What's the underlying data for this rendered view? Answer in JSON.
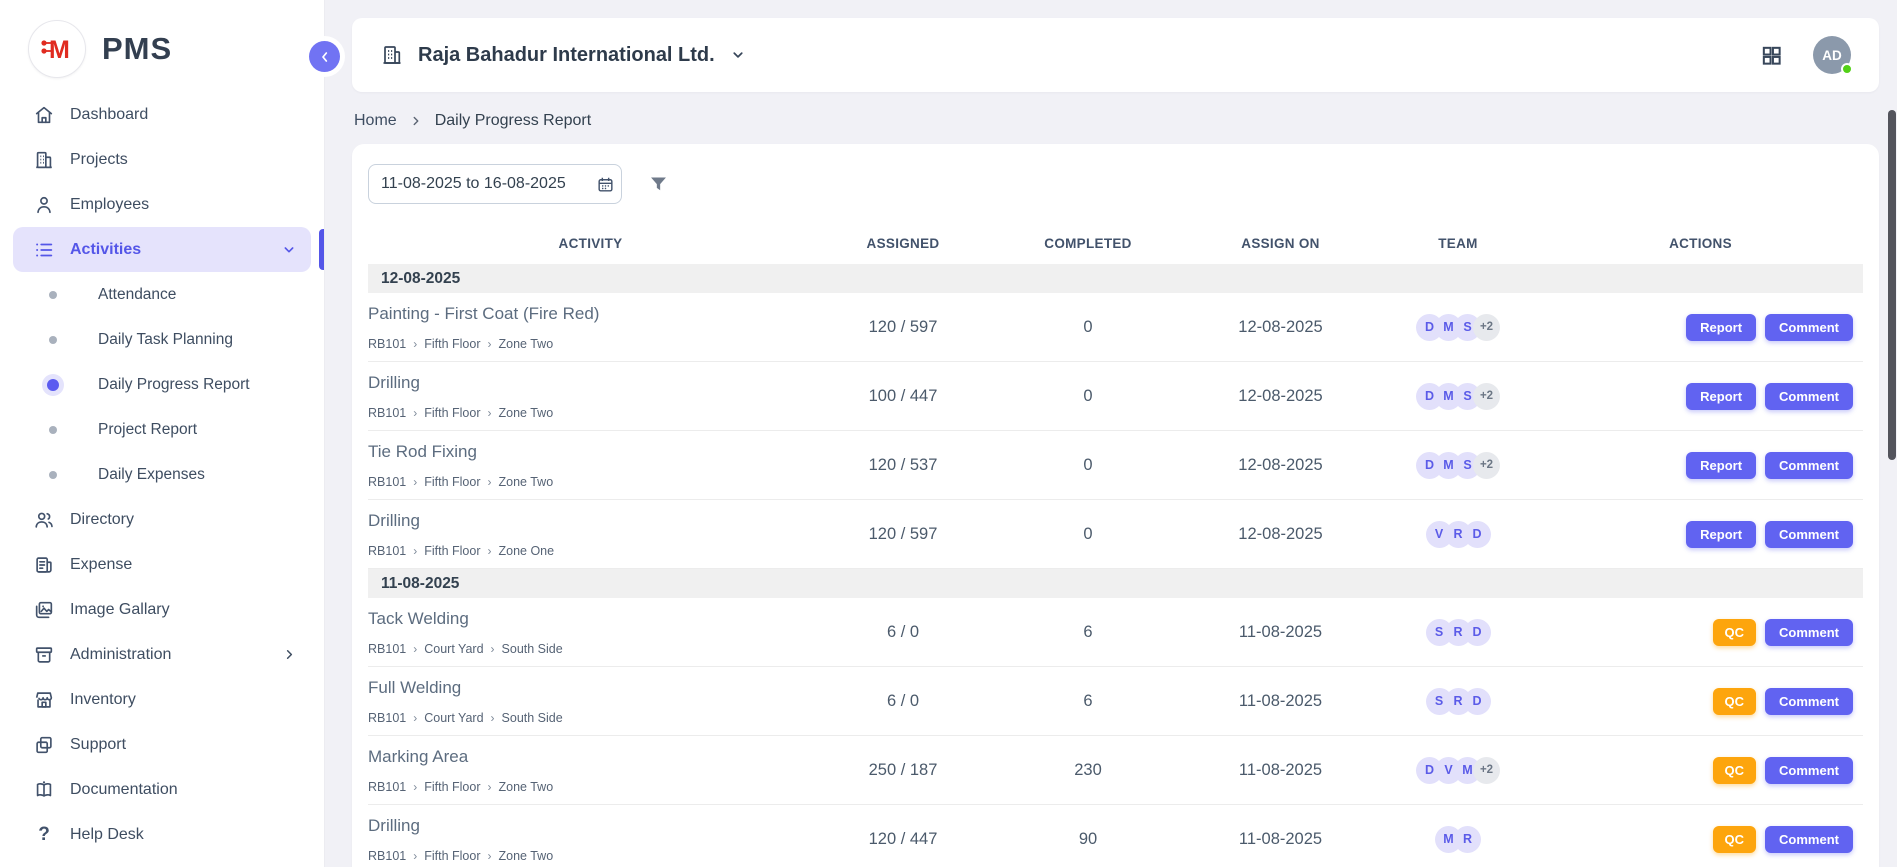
{
  "brand": {
    "logo_letter": "M",
    "app_name": "PMS"
  },
  "colors": {
    "accent": "#6163F1",
    "accent_light": "#E5E3FC",
    "amber": "#FDA50D",
    "brand_red": "#E02B20",
    "online_green": "#52D017",
    "avatar_gray": "#8B99AB"
  },
  "sidebar": {
    "items": [
      {
        "id": "dashboard",
        "label": "Dashboard",
        "icon": "home-icon",
        "type": "top"
      },
      {
        "id": "projects",
        "label": "Projects",
        "icon": "projects-icon",
        "type": "top"
      },
      {
        "id": "employees",
        "label": "Employees",
        "icon": "employees-icon",
        "type": "top"
      },
      {
        "id": "activities",
        "label": "Activities",
        "icon": "activities-icon",
        "type": "top",
        "active": true,
        "chevron": "down"
      },
      {
        "id": "attendance",
        "label": "Attendance",
        "type": "sub"
      },
      {
        "id": "daily-task-planning",
        "label": "Daily Task Planning",
        "type": "sub"
      },
      {
        "id": "daily-progress-report",
        "label": "Daily Progress Report",
        "type": "sub",
        "active": true
      },
      {
        "id": "project-report",
        "label": "Project Report",
        "type": "sub"
      },
      {
        "id": "daily-expenses",
        "label": "Daily Expenses",
        "type": "sub"
      },
      {
        "id": "directory",
        "label": "Directory",
        "icon": "directory-icon",
        "type": "top"
      },
      {
        "id": "expense",
        "label": "Expense",
        "icon": "expense-icon",
        "type": "top"
      },
      {
        "id": "image-gallary",
        "label": "Image Gallary",
        "icon": "image-gallery-icon",
        "type": "top"
      },
      {
        "id": "administration",
        "label": "Administration",
        "icon": "administration-icon",
        "type": "top",
        "chevron": "right"
      },
      {
        "id": "inventory",
        "label": "Inventory",
        "icon": "inventory-icon",
        "type": "top"
      },
      {
        "id": "support",
        "label": "Support",
        "icon": "support-icon",
        "type": "top"
      },
      {
        "id": "documentation",
        "label": "Documentation",
        "icon": "documentation-icon",
        "type": "top"
      },
      {
        "id": "help-desk",
        "label": "Help Desk",
        "icon": "help-icon",
        "type": "top"
      }
    ]
  },
  "header": {
    "company": "Raja Bahadur International Ltd.",
    "avatar_initials": "AD"
  },
  "breadcrumb": {
    "items": [
      "Home",
      "Daily Progress Report"
    ]
  },
  "filters": {
    "date_range": "11-08-2025 to 16-08-2025"
  },
  "table": {
    "columns": [
      "Activity",
      "Assigned",
      "Completed",
      "Assign On",
      "Team",
      "Actions"
    ],
    "groups": [
      {
        "date": "12-08-2025",
        "rows": [
          {
            "activity": "Painting - First Coat (Fire Red)",
            "path": [
              "RB101",
              "Fifth Floor",
              "Zone Two"
            ],
            "assigned": "120 / 597",
            "completed": "0",
            "assign_on": "12-08-2025",
            "team": [
              "D",
              "M",
              "S"
            ],
            "team_more": "+2",
            "actions": [
              "Report",
              "Comment"
            ]
          },
          {
            "activity": "Drilling",
            "path": [
              "RB101",
              "Fifth Floor",
              "Zone Two"
            ],
            "assigned": "100 / 447",
            "completed": "0",
            "assign_on": "12-08-2025",
            "team": [
              "D",
              "M",
              "S"
            ],
            "team_more": "+2",
            "actions": [
              "Report",
              "Comment"
            ]
          },
          {
            "activity": "Tie Rod Fixing",
            "path": [
              "RB101",
              "Fifth Floor",
              "Zone Two"
            ],
            "assigned": "120 / 537",
            "completed": "0",
            "assign_on": "12-08-2025",
            "team": [
              "D",
              "M",
              "S"
            ],
            "team_more": "+2",
            "actions": [
              "Report",
              "Comment"
            ]
          },
          {
            "activity": "Drilling",
            "path": [
              "RB101",
              "Fifth Floor",
              "Zone One"
            ],
            "assigned": "120 / 597",
            "completed": "0",
            "assign_on": "12-08-2025",
            "team": [
              "V",
              "R",
              "D"
            ],
            "team_more": null,
            "actions": [
              "Report",
              "Comment"
            ]
          }
        ]
      },
      {
        "date": "11-08-2025",
        "rows": [
          {
            "activity": "Tack Welding",
            "path": [
              "RB101",
              "Court Yard",
              "South Side"
            ],
            "assigned": "6 / 0",
            "completed": "6",
            "assign_on": "11-08-2025",
            "team": [
              "S",
              "R",
              "D"
            ],
            "team_more": null,
            "actions": [
              "QC",
              "Comment"
            ]
          },
          {
            "activity": "Full Welding",
            "path": [
              "RB101",
              "Court Yard",
              "South Side"
            ],
            "assigned": "6 / 0",
            "completed": "6",
            "assign_on": "11-08-2025",
            "team": [
              "S",
              "R",
              "D"
            ],
            "team_more": null,
            "actions": [
              "QC",
              "Comment"
            ]
          },
          {
            "activity": "Marking Area",
            "path": [
              "RB101",
              "Fifth Floor",
              "Zone Two"
            ],
            "assigned": "250 / 187",
            "completed": "230",
            "assign_on": "11-08-2025",
            "team": [
              "D",
              "V",
              "M"
            ],
            "team_more": "+2",
            "actions": [
              "QC",
              "Comment"
            ]
          },
          {
            "activity": "Drilling",
            "path": [
              "RB101",
              "Fifth Floor",
              "Zone Two"
            ],
            "assigned": "120 / 447",
            "completed": "90",
            "assign_on": "11-08-2025",
            "team": [
              "M",
              "R"
            ],
            "team_more": null,
            "actions": [
              "QC",
              "Comment"
            ]
          }
        ]
      }
    ]
  }
}
